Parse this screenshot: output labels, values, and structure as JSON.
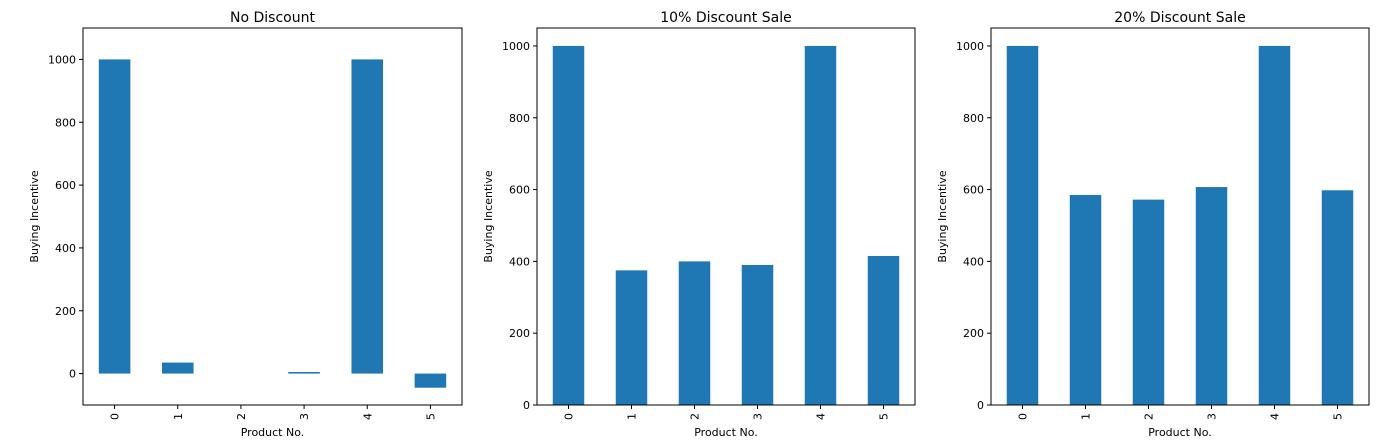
{
  "colors": {
    "bar": "#1f77b4",
    "axes": "#000000",
    "background": "#ffffff"
  },
  "chart_data": [
    {
      "type": "bar",
      "title": "No Discount",
      "xlabel": "Product No.",
      "ylabel": "Buying Incentive",
      "categories": [
        "0",
        "1",
        "2",
        "3",
        "4",
        "5"
      ],
      "values": [
        1000,
        35,
        0,
        5,
        1000,
        -45
      ],
      "ylim": [
        -100,
        1100
      ],
      "yticks": [
        0,
        200,
        400,
        600,
        800,
        1000
      ],
      "grid": false,
      "legend": "none"
    },
    {
      "type": "bar",
      "title": "10% Discount Sale",
      "xlabel": "Product No.",
      "ylabel": "Buying Incentive",
      "categories": [
        "0",
        "1",
        "2",
        "3",
        "4",
        "5"
      ],
      "values": [
        1000,
        375,
        400,
        390,
        1000,
        415
      ],
      "ylim": [
        0,
        1050
      ],
      "yticks": [
        0,
        200,
        400,
        600,
        800,
        1000
      ],
      "grid": false,
      "legend": "none"
    },
    {
      "type": "bar",
      "title": "20% Discount Sale",
      "xlabel": "Product No.",
      "ylabel": "Buying Incentive",
      "categories": [
        "0",
        "1",
        "2",
        "3",
        "4",
        "5"
      ],
      "values": [
        1000,
        585,
        572,
        607,
        1000,
        598
      ],
      "ylim": [
        0,
        1050
      ],
      "yticks": [
        0,
        200,
        400,
        600,
        800,
        1000
      ],
      "grid": false,
      "legend": "none"
    }
  ]
}
